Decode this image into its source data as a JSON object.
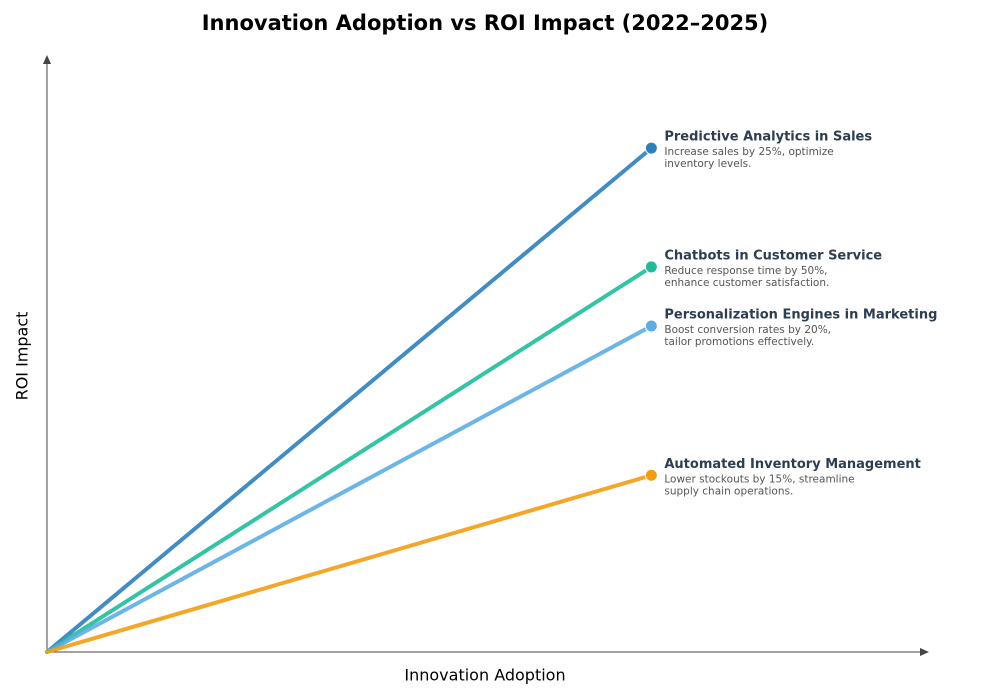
{
  "chart_data": {
    "type": "line",
    "title": "Innovation Adoption vs ROI Impact (2022–2025)",
    "x_label": "Innovation Adoption",
    "y_label": "ROI Impact",
    "xlim": [
      0,
      10
    ],
    "ylim": [
      0,
      10
    ],
    "series": [
      {
        "name": "Predictive Analytics in Sales",
        "color": "#2e7fbb",
        "x": [
          0,
          6.86
        ],
        "values": [
          0,
          8.44
        ],
        "description": [
          "Increase sales by 25%, optimize",
          "inventory levels."
        ]
      },
      {
        "name": "Chatbots in Customer Service",
        "color": "#1fbc9c",
        "x": [
          0,
          6.86
        ],
        "values": [
          0,
          6.45
        ],
        "description": [
          "Reduce response time by 50%,",
          "enhance customer satisfaction."
        ]
      },
      {
        "name": "Personalization Engines in Marketing",
        "color": "#5dade2",
        "x": [
          0,
          6.86
        ],
        "values": [
          0,
          5.46
        ],
        "description": [
          "Boost conversion rates by 20%,",
          "tailor promotions effectively."
        ]
      },
      {
        "name": "Automated Inventory Management",
        "color": "#f39c12",
        "x": [
          0,
          6.86
        ],
        "values": [
          0,
          2.96
        ],
        "description": [
          "Lower stockouts by 15%, streamline",
          "supply chain operations."
        ]
      }
    ]
  }
}
